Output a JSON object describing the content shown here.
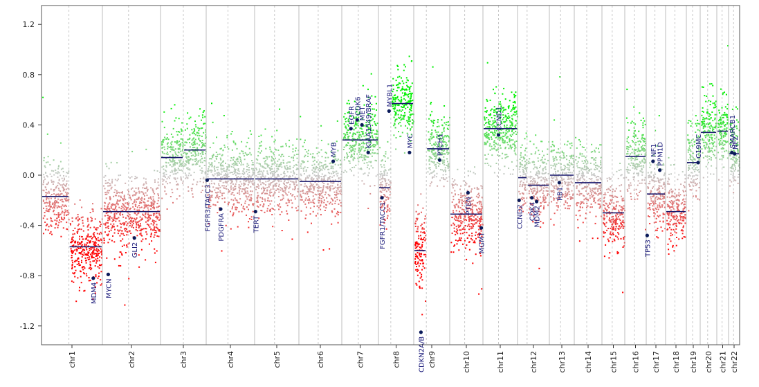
{
  "chart_data": {
    "type": "scatter",
    "title": "",
    "xlabel": "",
    "ylabel": "",
    "ylim": [
      -1.35,
      1.35
    ],
    "y_ticks": [
      "1.2",
      "0.8",
      "0.4",
      "0.0",
      "-0.4",
      "-0.8",
      "-1.2"
    ],
    "y_tick_values": [
      1.2,
      0.8,
      0.4,
      0.0,
      -0.4,
      -0.8,
      -1.2
    ],
    "colors": {
      "gain": "#00e000",
      "loss": "#ff0000",
      "neutral": "#c8c8c8",
      "segment": "#1a1a6e",
      "gene": "#0a1a5a"
    },
    "chromosomes": [
      {
        "name": "chr1",
        "arms": [
          {
            "level": -0.17,
            "w": 0.45
          },
          {
            "level": -0.57,
            "w": 0.55
          }
        ]
      },
      {
        "name": "chr2",
        "arms": [
          {
            "level": -0.29,
            "w": 1.0
          }
        ]
      },
      {
        "name": "chr3",
        "arms": [
          {
            "level": 0.14,
            "w": 0.5
          },
          {
            "level": 0.2,
            "w": 0.5
          }
        ]
      },
      {
        "name": "chr4",
        "arms": [
          {
            "level": -0.03,
            "w": 1.0
          }
        ]
      },
      {
        "name": "chr5",
        "arms": [
          {
            "level": -0.03,
            "w": 1.0
          }
        ]
      },
      {
        "name": "chr6",
        "arms": [
          {
            "level": -0.05,
            "w": 1.0
          }
        ]
      },
      {
        "name": "chr7",
        "arms": [
          {
            "level": 0.28,
            "w": 1.0
          }
        ]
      },
      {
        "name": "chr8",
        "arms": [
          {
            "level": -0.1,
            "w": 0.35
          },
          {
            "level": 0.57,
            "w": 0.65
          }
        ]
      },
      {
        "name": "chr9",
        "arms": [
          {
            "level": -0.6,
            "w": 0.35
          },
          {
            "level": 0.21,
            "w": 0.65
          }
        ]
      },
      {
        "name": "chr10",
        "arms": [
          {
            "level": -0.31,
            "w": 1.0
          }
        ]
      },
      {
        "name": "chr11",
        "arms": [
          {
            "level": 0.37,
            "w": 1.0
          }
        ]
      },
      {
        "name": "chr12",
        "arms": [
          {
            "level": -0.02,
            "w": 0.3
          },
          {
            "level": -0.08,
            "w": 0.7
          }
        ]
      },
      {
        "name": "chr13",
        "arms": [
          {
            "level": 0.0,
            "w": 1.0
          }
        ]
      },
      {
        "name": "chr14",
        "arms": [
          {
            "level": -0.06,
            "w": 1.0
          }
        ]
      },
      {
        "name": "chr15",
        "arms": [
          {
            "level": -0.3,
            "w": 1.0
          }
        ]
      },
      {
        "name": "chr16",
        "arms": [
          {
            "level": 0.15,
            "w": 1.0
          }
        ]
      },
      {
        "name": "chr17",
        "arms": [
          {
            "level": -0.15,
            "w": 1.0
          }
        ]
      },
      {
        "name": "chr18",
        "arms": [
          {
            "level": -0.29,
            "w": 1.0
          }
        ]
      },
      {
        "name": "chr19",
        "arms": [
          {
            "level": 0.1,
            "w": 1.0
          }
        ]
      },
      {
        "name": "chr20",
        "arms": [
          {
            "level": 0.34,
            "w": 1.0
          }
        ]
      },
      {
        "name": "chr21",
        "arms": [
          {
            "level": 0.35,
            "w": 1.0
          }
        ]
      },
      {
        "name": "chr22",
        "arms": [
          {
            "level": 0.17,
            "w": 1.0
          }
        ]
      }
    ],
    "genes": [
      {
        "name": "MDM4",
        "chr": "chr1",
        "pos": 0.85,
        "value": -0.82
      },
      {
        "name": "MYCN",
        "chr": "chr2",
        "pos": 0.1,
        "value": -0.79
      },
      {
        "name": "GLI2",
        "chr": "chr2",
        "pos": 0.55,
        "value": -0.5
      },
      {
        "name": "FGFR3/TACC3",
        "chr": "chr4",
        "pos": 0.02,
        "value": -0.04
      },
      {
        "name": "PDGFRA",
        "chr": "chr4",
        "pos": 0.3,
        "value": -0.27
      },
      {
        "name": "TERT",
        "chr": "chr5",
        "pos": 0.02,
        "value": -0.29
      },
      {
        "name": "MYB",
        "chr": "chr6",
        "pos": 0.8,
        "value": 0.11
      },
      {
        "name": "EGFR",
        "chr": "chr7",
        "pos": 0.25,
        "value": 0.37
      },
      {
        "name": "CDK6",
        "chr": "chr7",
        "pos": 0.42,
        "value": 0.44
      },
      {
        "name": "MET",
        "chr": "chr7",
        "pos": 0.55,
        "value": 0.4
      },
      {
        "name": "KIAA1549/BRAF",
        "chr": "chr7",
        "pos": 0.72,
        "value": 0.18
      },
      {
        "name": "FGFR1/TACC1",
        "chr": "chr8",
        "pos": 0.1,
        "value": -0.18
      },
      {
        "name": "MYBL1",
        "chr": "chr8",
        "pos": 0.3,
        "value": 0.51
      },
      {
        "name": "MYC",
        "chr": "chr8",
        "pos": 0.88,
        "value": 0.18
      },
      {
        "name": "CDKN2A/B",
        "chr": "chr9",
        "pos": 0.2,
        "value": -1.25
      },
      {
        "name": "PTCH1",
        "chr": "chr9",
        "pos": 0.72,
        "value": 0.12
      },
      {
        "name": "PTEN",
        "chr": "chr10",
        "pos": 0.55,
        "value": -0.14
      },
      {
        "name": "MGMT",
        "chr": "chr10",
        "pos": 0.95,
        "value": -0.42
      },
      {
        "name": "CCND1",
        "chr": "chr11",
        "pos": 0.45,
        "value": 0.32
      },
      {
        "name": "CCND2",
        "chr": "chr12",
        "pos": 0.05,
        "value": -0.2
      },
      {
        "name": "CDK4",
        "chr": "chr12",
        "pos": 0.45,
        "value": -0.18
      },
      {
        "name": "MDM2",
        "chr": "chr12",
        "pos": 0.6,
        "value": -0.21
      },
      {
        "name": "RB1",
        "chr": "chr13",
        "pos": 0.4,
        "value": -0.06
      },
      {
        "name": "TP53",
        "chr": "chr17",
        "pos": 0.05,
        "value": -0.48
      },
      {
        "name": "NF1",
        "chr": "chr17",
        "pos": 0.35,
        "value": 0.11
      },
      {
        "name": "PPM1D",
        "chr": "chr17",
        "pos": 0.7,
        "value": 0.04
      },
      {
        "name": "C19MC",
        "chr": "chr19",
        "pos": 0.85,
        "value": 0.1
      },
      {
        "name": "SMARCB1",
        "chr": "chr22",
        "pos": 0.3,
        "value": 0.18
      },
      {
        "name": "NF2",
        "chr": "chr22",
        "pos": 0.55,
        "value": 0.17
      }
    ]
  }
}
